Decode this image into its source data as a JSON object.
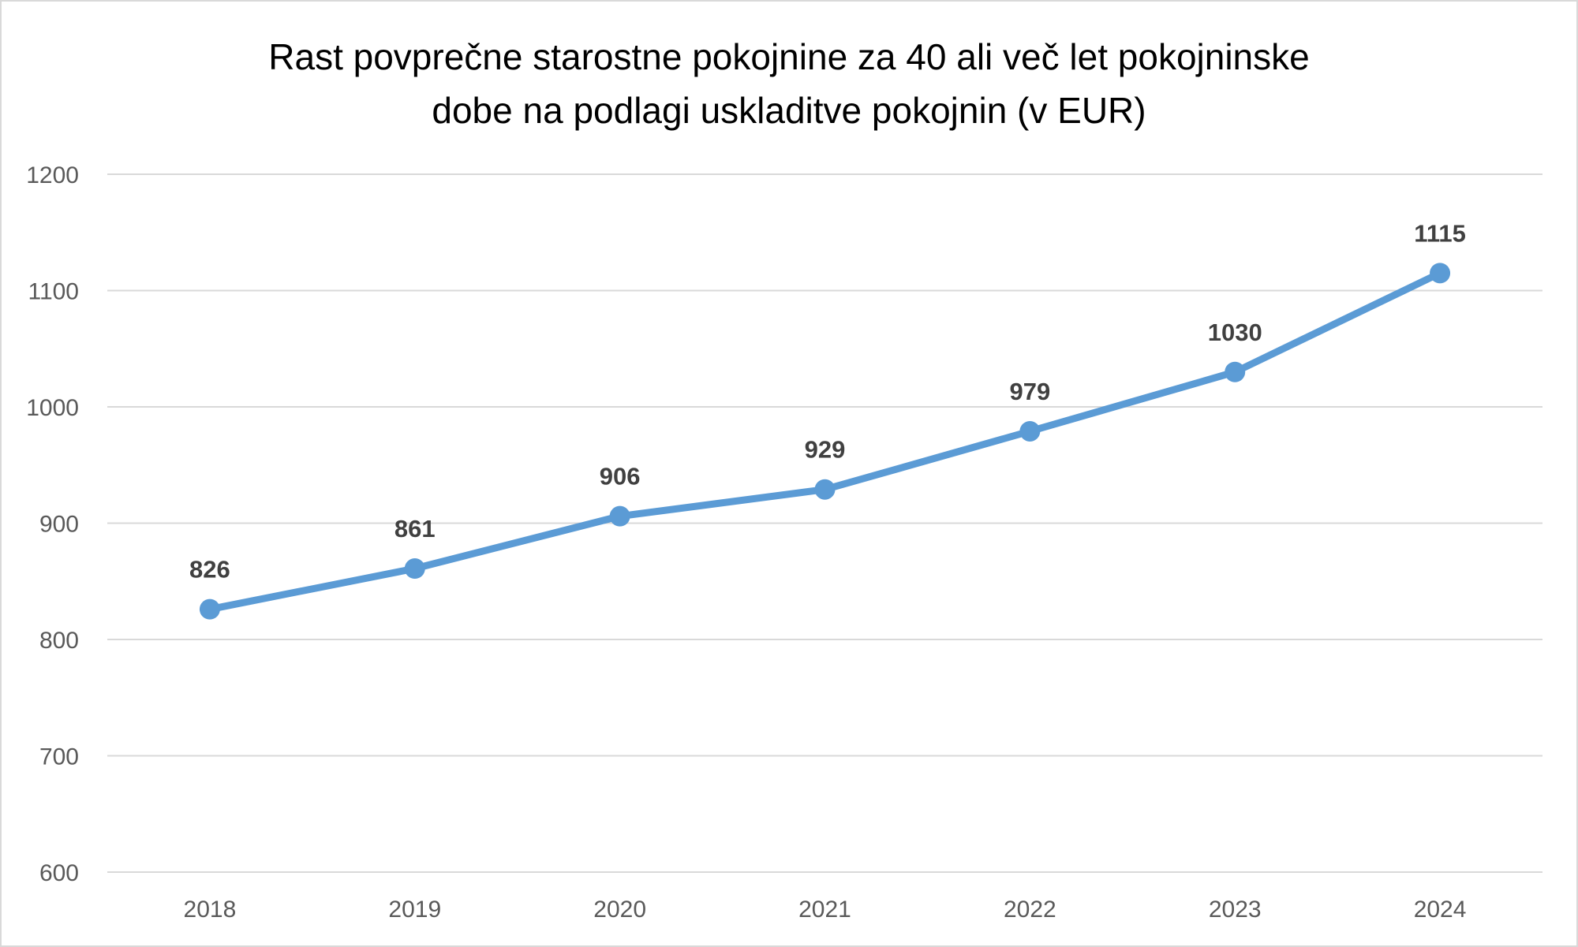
{
  "chart_data": {
    "type": "line",
    "title_lines": [
      "Rast povprečne starostne pokojnine za 40 ali več let pokojninske",
      "dobe na podlagi uskladitve pokojnin (v EUR)"
    ],
    "xlabel": "",
    "ylabel": "",
    "categories": [
      "2018",
      "2019",
      "2020",
      "2021",
      "2022",
      "2023",
      "2024"
    ],
    "series": [
      {
        "values": [
          826,
          861,
          906,
          929,
          979,
          1030,
          1115
        ],
        "color": "#5B9BD5"
      }
    ],
    "data_labels": [
      "826",
      "861",
      "906",
      "929",
      "979",
      "1030",
      "1115"
    ],
    "ylim": [
      600,
      1200
    ],
    "yticks": [
      600,
      700,
      800,
      900,
      1000,
      1100,
      1200
    ],
    "grid": true,
    "legend": "none",
    "colors": {
      "line": "#5B9BD5",
      "grid": "#d9d9d9",
      "tick_text": "#595959",
      "label_text": "#404040"
    }
  }
}
